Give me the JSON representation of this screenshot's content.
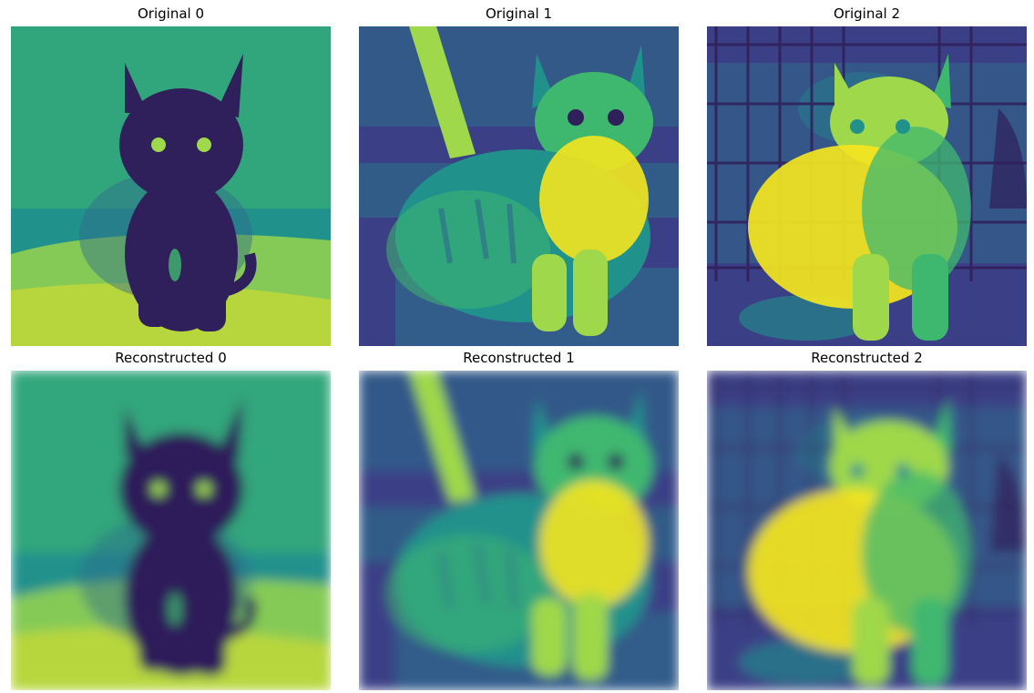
{
  "figure": {
    "panels": [
      {
        "title": "Original 0",
        "kind": "original",
        "subject": "black-kitten",
        "blur": 0
      },
      {
        "title": "Original 1",
        "kind": "original",
        "subject": "tabby-kitten",
        "blur": 0
      },
      {
        "title": "Original 2",
        "kind": "original",
        "subject": "caged-cat",
        "blur": 0
      },
      {
        "title": "Reconstructed 0",
        "kind": "reconstructed",
        "subject": "black-kitten",
        "blur": 6
      },
      {
        "title": "Reconstructed 1",
        "kind": "reconstructed",
        "subject": "tabby-kitten",
        "blur": 6
      },
      {
        "title": "Reconstructed 2",
        "kind": "reconstructed",
        "subject": "caged-cat",
        "blur": 6
      }
    ],
    "palette": {
      "dark": "#2f1f5a",
      "deep": "#3b3f86",
      "blue": "#2f6a8c",
      "teal": "#21918c",
      "green": "#3fb86f",
      "lime": "#9fd84a",
      "yellow": "#f4e51f"
    }
  }
}
